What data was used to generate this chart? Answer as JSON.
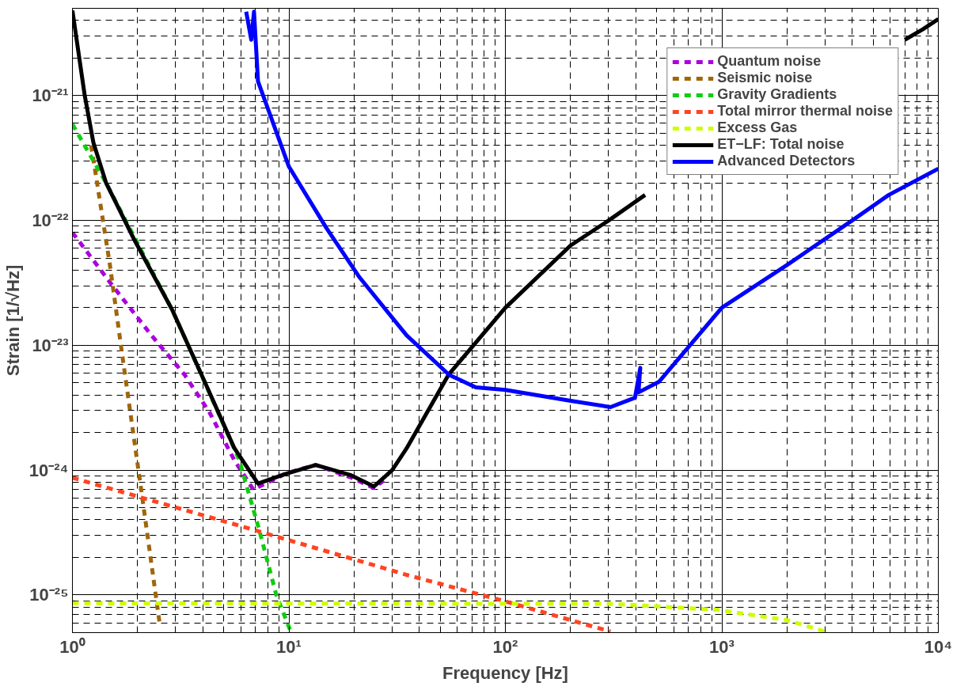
{
  "chart_data": {
    "type": "line",
    "xlabel": "Frequency [Hz]",
    "ylabel": "Strain [1/√Hz]",
    "log": "xy",
    "grid": true,
    "legend": "top right",
    "xlim": [
      1,
      10000
    ],
    "ylim": [
      5e-26,
      5e-21
    ],
    "xticks": [
      {
        "value": 1,
        "label": "10⁰"
      },
      {
        "value": 10,
        "label": "10¹"
      },
      {
        "value": 100,
        "label": "10²"
      },
      {
        "value": 1000,
        "label": "10³"
      },
      {
        "value": 10000,
        "label": "10⁴"
      },
      {
        "value": 2,
        "label": null
      },
      {
        "value": 3,
        "label": null
      },
      {
        "value": 4,
        "label": null
      },
      {
        "value": 5,
        "label": null
      },
      {
        "value": 6,
        "label": null
      },
      {
        "value": 7,
        "label": null
      },
      {
        "value": 8,
        "label": null
      },
      {
        "value": 9,
        "label": null
      },
      {
        "value": 20,
        "label": null
      },
      {
        "value": 30,
        "label": null
      },
      {
        "value": 40,
        "label": null
      },
      {
        "value": 50,
        "label": null
      },
      {
        "value": 60,
        "label": null
      },
      {
        "value": 70,
        "label": null
      },
      {
        "value": 80,
        "label": null
      },
      {
        "value": 90,
        "label": null
      },
      {
        "value": 200,
        "label": null
      },
      {
        "value": 300,
        "label": null
      },
      {
        "value": 400,
        "label": null
      },
      {
        "value": 500,
        "label": null
      },
      {
        "value": 600,
        "label": null
      },
      {
        "value": 700,
        "label": null
      },
      {
        "value": 800,
        "label": null
      },
      {
        "value": 900,
        "label": null
      },
      {
        "value": 2000,
        "label": null
      },
      {
        "value": 3000,
        "label": null
      },
      {
        "value": 4000,
        "label": null
      },
      {
        "value": 5000,
        "label": null
      },
      {
        "value": 6000,
        "label": null
      },
      {
        "value": 7000,
        "label": null
      },
      {
        "value": 8000,
        "label": null
      },
      {
        "value": 9000,
        "label": null
      }
    ],
    "yticks": [
      {
        "value": 1e-25,
        "label": "10⁻²⁵"
      },
      {
        "value": 1e-24,
        "label": "10⁻²⁴"
      },
      {
        "value": 1e-23,
        "label": "10⁻²³"
      },
      {
        "value": 1e-22,
        "label": "10⁻²²"
      },
      {
        "value": 1e-21,
        "label": "10⁻²¹"
      },
      {
        "value": 6e-26,
        "label": null
      },
      {
        "value": 7e-26,
        "label": null
      },
      {
        "value": 8e-26,
        "label": null
      },
      {
        "value": 9e-26,
        "label": null
      },
      {
        "value": 2e-25,
        "label": null
      },
      {
        "value": 3e-25,
        "label": null
      },
      {
        "value": 4e-25,
        "label": null
      },
      {
        "value": 5e-25,
        "label": null
      },
      {
        "value": 6e-25,
        "label": null
      },
      {
        "value": 7e-25,
        "label": null
      },
      {
        "value": 8e-25,
        "label": null
      },
      {
        "value": 9e-25,
        "label": null
      },
      {
        "value": 2e-24,
        "label": null
      },
      {
        "value": 3e-24,
        "label": null
      },
      {
        "value": 4e-24,
        "label": null
      },
      {
        "value": 5e-24,
        "label": null
      },
      {
        "value": 6e-24,
        "label": null
      },
      {
        "value": 7e-24,
        "label": null
      },
      {
        "value": 8e-24,
        "label": null
      },
      {
        "value": 9e-24,
        "label": null
      },
      {
        "value": 2e-23,
        "label": null
      },
      {
        "value": 3e-23,
        "label": null
      },
      {
        "value": 4e-23,
        "label": null
      },
      {
        "value": 5e-23,
        "label": null
      },
      {
        "value": 6e-23,
        "label": null
      },
      {
        "value": 7e-23,
        "label": null
      },
      {
        "value": 8e-23,
        "label": null
      },
      {
        "value": 9e-23,
        "label": null
      },
      {
        "value": 2e-22,
        "label": null
      },
      {
        "value": 3e-22,
        "label": null
      },
      {
        "value": 4e-22,
        "label": null
      },
      {
        "value": 5e-22,
        "label": null
      },
      {
        "value": 6e-22,
        "label": null
      },
      {
        "value": 7e-22,
        "label": null
      },
      {
        "value": 8e-22,
        "label": null
      },
      {
        "value": 9e-22,
        "label": null
      },
      {
        "value": 2e-21,
        "label": null
      },
      {
        "value": 3e-21,
        "label": null
      },
      {
        "value": 4e-21,
        "label": null
      }
    ],
    "series": [
      {
        "name": "Quantum noise",
        "color": "#aa00dd",
        "line_style": "dashed",
        "x": [
          1,
          1.49,
          2.32,
          3.3,
          4.3,
          5.6,
          6.85,
          9.8,
          13.3,
          19.5,
          24.7,
          28
        ],
        "values": [
          8e-23,
          3.2e-23,
          1.2e-23,
          5.8e-24,
          2.9e-24,
          1.2e-24,
          7e-25,
          9.5e-25,
          1.1e-24,
          8.7e-25,
          7.2e-25,
          8.5e-25
        ]
      },
      {
        "name": "Seismic noise",
        "color": "#a0660a",
        "line_style": "dashed",
        "x": [
          1.22,
          1.3,
          1.49,
          1.7,
          2.08,
          2.53
        ],
        "values": [
          4e-22,
          2e-22,
          4.4e-23,
          8.3e-24,
          6.9e-25,
          5.9e-26
        ]
      },
      {
        "name": "Gravity Gradients",
        "color": "#11cc11",
        "line_style": "dashed",
        "x": [
          1,
          1.43,
          2.9,
          4.1,
          5.9,
          7.3,
          8.75,
          10.2
        ],
        "values": [
          5.9e-22,
          2e-22,
          1.9e-23,
          5e-24,
          1.2e-24,
          3.3e-25,
          1e-25,
          5.1e-26
        ]
      },
      {
        "name": "Total mirror thermal noise",
        "color": "#ff4422",
        "line_style": "dashed",
        "x": [
          1,
          7,
          35,
          100,
          306
        ],
        "values": [
          8.7e-25,
          3.3e-25,
          1.45e-25,
          8.9e-26,
          5.1e-26
        ]
      },
      {
        "name": "Excess Gas",
        "color": "#ccff00",
        "line_style": "dashed",
        "x": [
          1,
          318,
          960,
          2000,
          3000
        ],
        "values": [
          8.6e-26,
          8.5e-26,
          7.6e-26,
          6.3e-26,
          5.1e-26
        ]
      },
      {
        "name": "ET−LF: Total noise",
        "color": "#000000",
        "line_style": "solid",
        "x": [
          1,
          1.14,
          1.25,
          1.43,
          1.94,
          2.9,
          3.95,
          5.6,
          7.2,
          9.6,
          13.3,
          19.4,
          24.7,
          30,
          35,
          54.6,
          100,
          200,
          300,
          442,
          1000,
          7000,
          8500,
          10000
        ],
        "values": [
          4.8e-21,
          1e-21,
          4.2e-22,
          2e-22,
          6.9e-23,
          1.9e-23,
          5.8e-24,
          1.5e-24,
          7.8e-25,
          9.3e-25,
          1.1e-24,
          9.1e-25,
          7.4e-25,
          1e-24,
          1.5e-24,
          5.8e-24,
          2e-23,
          6.3e-23,
          1e-22,
          1.6e-22,
          null,
          2.8e-21,
          3.4e-21,
          4.1e-21
        ]
      },
      {
        "name": "Advanced Detectors",
        "color": "#0000ff",
        "line_style": "solid",
        "x": [
          6.35,
          6.7,
          6.9,
          7.2,
          10,
          14.9,
          21.2,
          35,
          55,
          73,
          100,
          200,
          306,
          397,
          420,
          412,
          512,
          1000,
          2000,
          4000,
          5900,
          10000
        ],
        "values": [
          4.7e-21,
          2.8e-21,
          4.7e-21,
          1.3e-21,
          2.7e-22,
          8.7e-23,
          3.5e-23,
          1.2e-23,
          5.8e-24,
          4.6e-24,
          4.4e-24,
          3.6e-24,
          3.2e-24,
          3.8e-24,
          6.6e-24,
          4.2e-24,
          5.1e-24,
          2e-23,
          4.4e-23,
          1e-22,
          1.6e-22,
          2.6e-22
        ]
      }
    ]
  }
}
